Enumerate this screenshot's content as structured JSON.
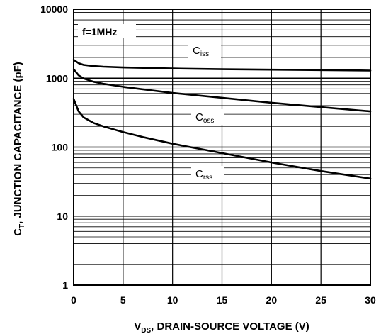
{
  "chart_data": {
    "type": "line",
    "xscale": "linear",
    "yscale": "log",
    "xlim": [
      0,
      30
    ],
    "ylim": [
      1,
      10000
    ],
    "x_ticks": [
      "0",
      "5",
      "10",
      "15",
      "20",
      "25",
      "30"
    ],
    "y_ticks": [
      "1",
      "10",
      "100",
      "1000",
      "10000"
    ],
    "xlabel": {
      "pre": "V",
      "sub": "DS",
      "post": ", DRAIN-SOURCE VOLTAGE (V)"
    },
    "ylabel": {
      "pre": "C",
      "sub": "T",
      "post": ", JUNCTION CAPACITANCE (pF)"
    },
    "annotation": "f=1MHz",
    "grid": true,
    "series": [
      {
        "label_main": "C",
        "label_sub": "iss",
        "x": [
          0,
          0.5,
          1,
          2,
          3,
          5,
          7,
          10,
          15,
          20,
          25,
          30
        ],
        "y": [
          1850,
          1650,
          1560,
          1500,
          1470,
          1430,
          1410,
          1380,
          1350,
          1330,
          1310,
          1290
        ]
      },
      {
        "label_main": "C",
        "label_sub": "oss",
        "x": [
          0,
          0.5,
          1,
          2,
          3,
          5,
          7,
          10,
          15,
          20,
          25,
          30
        ],
        "y": [
          1350,
          1100,
          990,
          890,
          830,
          750,
          690,
          610,
          520,
          440,
          380,
          330
        ]
      },
      {
        "label_main": "C",
        "label_sub": "rss",
        "x": [
          0,
          0.5,
          1,
          2,
          3,
          5,
          7,
          10,
          15,
          20,
          25,
          30
        ],
        "y": [
          500,
          330,
          270,
          225,
          200,
          165,
          140,
          112,
          82,
          60,
          45,
          35
        ]
      }
    ]
  }
}
